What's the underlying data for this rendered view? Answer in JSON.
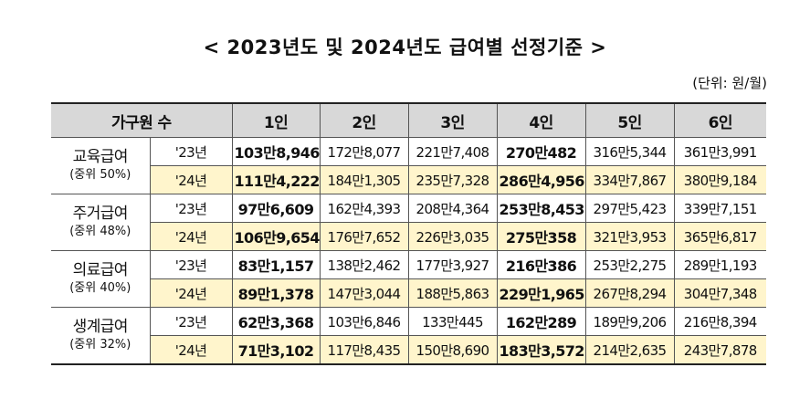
{
  "title": "< 2023년도 및 2024년도 급여별 선정기준 >",
  "unit": "(단위: 원/월)",
  "headers": [
    "가구원 수",
    "1인",
    "2인",
    "3인",
    "4인",
    "5인",
    "6인"
  ],
  "groups": [
    {
      "name": "교육급여",
      "sub": "(중위 50%)",
      "rows": [
        {
          "year": "'23년",
          "values": [
            "103만8,946",
            "172만8,077",
            "221만7,408",
            "270만482",
            "316만5,344",
            "361만3,991"
          ]
        },
        {
          "year": "'24년",
          "values": [
            "111만4,222",
            "184만1,305",
            "235만7,328",
            "286만4,956",
            "334만7,867",
            "380만9,184"
          ]
        }
      ]
    },
    {
      "name": "주거급여",
      "sub": "(중위 48%)",
      "rows": [
        {
          "year": "'23년",
          "values": [
            "97만6,609",
            "162만4,393",
            "208만4,364",
            "253만8,453",
            "297만5,423",
            "339만7,151"
          ]
        },
        {
          "year": "'24년",
          "values": [
            "106만9,654",
            "176만7,652",
            "226만3,035",
            "275만358",
            "321만3,953",
            "365만6,817"
          ]
        }
      ]
    },
    {
      "name": "의료급여",
      "sub": "(중위 40%)",
      "rows": [
        {
          "year": "'23년",
          "values": [
            "83만1,157",
            "138만2,462",
            "177만3,927",
            "216만386",
            "253만2,275",
            "289만1,193"
          ]
        },
        {
          "year": "'24년",
          "values": [
            "89만1,378",
            "147만3,044",
            "188만5,863",
            "229만1,965",
            "267만8,294",
            "304만7,348"
          ]
        }
      ]
    },
    {
      "name": "생계급여",
      "sub": "(중위 32%)",
      "rows": [
        {
          "year": "'23년",
          "values": [
            "62만3,368",
            "103만6,846",
            "133만445",
            "162만289",
            "189만9,206",
            "216만8,394"
          ]
        },
        {
          "year": "'24년",
          "values": [
            "71만3,102",
            "117만8,435",
            "150만8,690",
            "183만3,572",
            "214만2,635",
            "243만7,878"
          ]
        }
      ]
    }
  ]
}
